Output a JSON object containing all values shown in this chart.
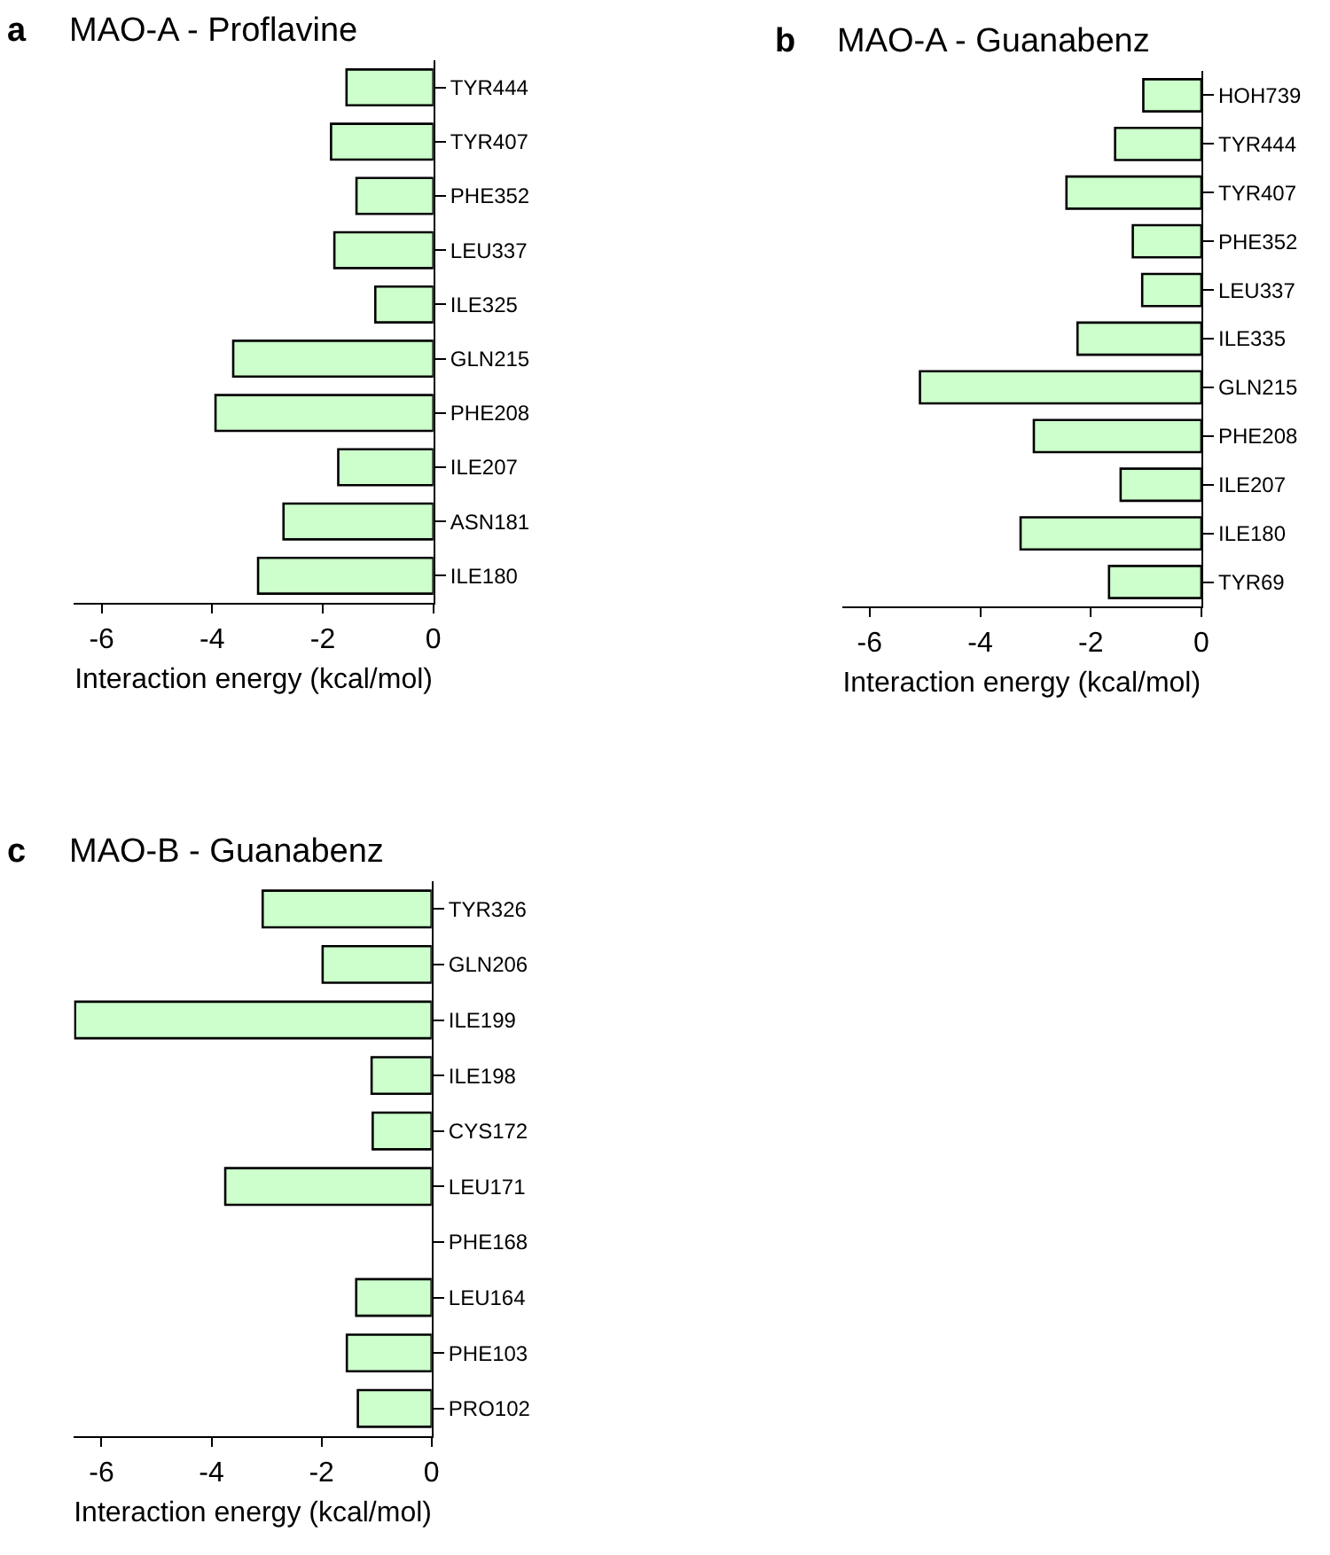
{
  "chart_data": [
    {
      "type": "bar",
      "orientation": "horizontal",
      "title": "MAO-A - Proflavine",
      "annotations": [
        "a"
      ],
      "xlabel": "Interaction energy (kcal/mol)",
      "categories": [
        "TYR444",
        "TYR407",
        "PHE352",
        "LEU337",
        "ILE325",
        "GLN215",
        "PHE208",
        "ILE207",
        "ASN181",
        "ILE180"
      ],
      "values": [
        -1.57,
        -1.85,
        -1.39,
        -1.79,
        -1.05,
        -3.62,
        -3.94,
        -1.72,
        -2.71,
        -3.17
      ],
      "color": "#ccffcc",
      "xlim": [
        -6.5,
        0
      ],
      "xticks": [
        -6,
        -4,
        -2,
        0
      ]
    },
    {
      "type": "bar",
      "orientation": "horizontal",
      "title": "MAO-A - Guanabenz",
      "annotations": [
        "b"
      ],
      "xlabel": "Interaction energy (kcal/mol)",
      "categories": [
        "HOH739",
        "TYR444",
        "TYR407",
        "PHE352",
        "LEU337",
        "ILE335",
        "GLN215",
        "PHE208",
        "ILE207",
        "ILE180",
        "TYR69"
      ],
      "values": [
        -1.05,
        -1.56,
        -2.44,
        -1.24,
        -1.07,
        -2.24,
        -5.09,
        -3.03,
        -1.46,
        -3.27,
        -1.67
      ],
      "color": "#ccffcc",
      "xlim": [
        -6.5,
        0
      ],
      "xticks": [
        -6,
        -4,
        -2,
        0
      ]
    },
    {
      "type": "bar",
      "orientation": "horizontal",
      "title": "MAO-B - Guanabenz",
      "annotations": [
        "c"
      ],
      "xlabel": "Interaction energy (kcal/mol)",
      "categories": [
        "TYR326",
        "GLN206",
        "ILE199",
        "ILE198",
        "CYS172",
        "LEU171",
        "PHE168",
        "LEU164",
        "PHE103",
        "PRO102"
      ],
      "values": [
        -3.07,
        -1.98,
        -6.48,
        -1.09,
        -1.07,
        -3.75,
        null,
        -1.37,
        -1.54,
        -1.34
      ],
      "color": "#ccffcc",
      "xlim": [
        -6.5,
        0
      ],
      "xticks": [
        -6,
        -4,
        -2,
        0
      ]
    }
  ]
}
